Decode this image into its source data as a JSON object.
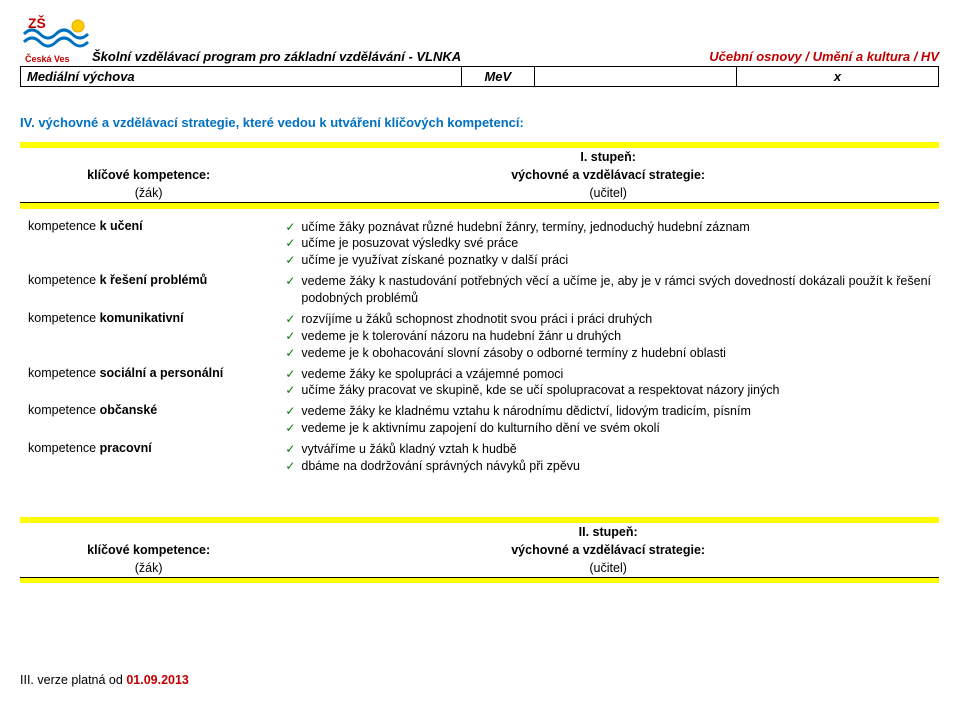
{
  "header": {
    "program_title": "Školní vzdělávací program pro základní vzdělávání - VLNKA",
    "right_title": "Učební osnovy / Umění a kultura / HV"
  },
  "top_table": {
    "label": "Mediální výchova",
    "code": "MeV",
    "mark": "x"
  },
  "section4_title": "IV. výchovné a vzdělávací strategie, které vedou k utváření klíčových kompetencí:",
  "col_headers": {
    "left_title": "klíčové kompetence:",
    "left_sub": "(žák)",
    "stage1": "I. stupeň:",
    "stage2": "II. stupeň:",
    "right_title": "výchovné a vzdělávací strategie:",
    "right_sub": "(učitel)"
  },
  "rows": [
    {
      "left_prefix": "kompetence ",
      "left_bold": "k učení",
      "bullets": [
        "učíme žáky poznávat různé hudební žánry, termíny, jednoduchý hudební záznam",
        "učíme je posuzovat výsledky své práce",
        "učíme je využívat získané poznatky v další práci"
      ]
    },
    {
      "left_prefix": "kompetence ",
      "left_bold": "k řešení problémů",
      "bullets": [
        "vedeme žáky k nastudování potřebných věcí a učíme je, aby je v rámci svých dovedností dokázali použít k řešení podobných problémů"
      ]
    },
    {
      "left_prefix": "kompetence ",
      "left_bold": "komunikativní",
      "bullets": [
        "rozvíjíme u žáků schopnost zhodnotit svou práci i práci druhých",
        "vedeme je k tolerování názoru na hudební žánr u druhých",
        "vedeme je k obohacování slovní zásoby o odborné termíny z hudební oblasti"
      ]
    },
    {
      "left_prefix": "kompetence ",
      "left_bold": "sociální a personální",
      "bullets": [
        "vedeme žáky ke spolupráci a vzájemné pomoci",
        "učíme žáky pracovat ve skupině, kde se učí spolupracovat a respektovat názory jiných"
      ]
    },
    {
      "left_prefix": "kompetence ",
      "left_bold": "občanské",
      "bullets": [
        "vedeme žáky ke kladnému vztahu k národnímu dědictví, lidovým tradicím, písním",
        "vedeme je k aktivnímu zapojení do kulturního dění ve svém okolí"
      ]
    },
    {
      "left_prefix": "kompetence ",
      "left_bold": "pracovní",
      "bullets": [
        "vytváříme u žáků kladný vztah k hudbě",
        "dbáme na dodržování správných návyků při zpěvu"
      ]
    }
  ],
  "footer": {
    "prefix": "III. verze platná od ",
    "date": "01.09.2013"
  },
  "colors": {
    "blue": "#0070c0",
    "red": "#c00000",
    "yellow": "#ffff00",
    "green": "#008000"
  }
}
